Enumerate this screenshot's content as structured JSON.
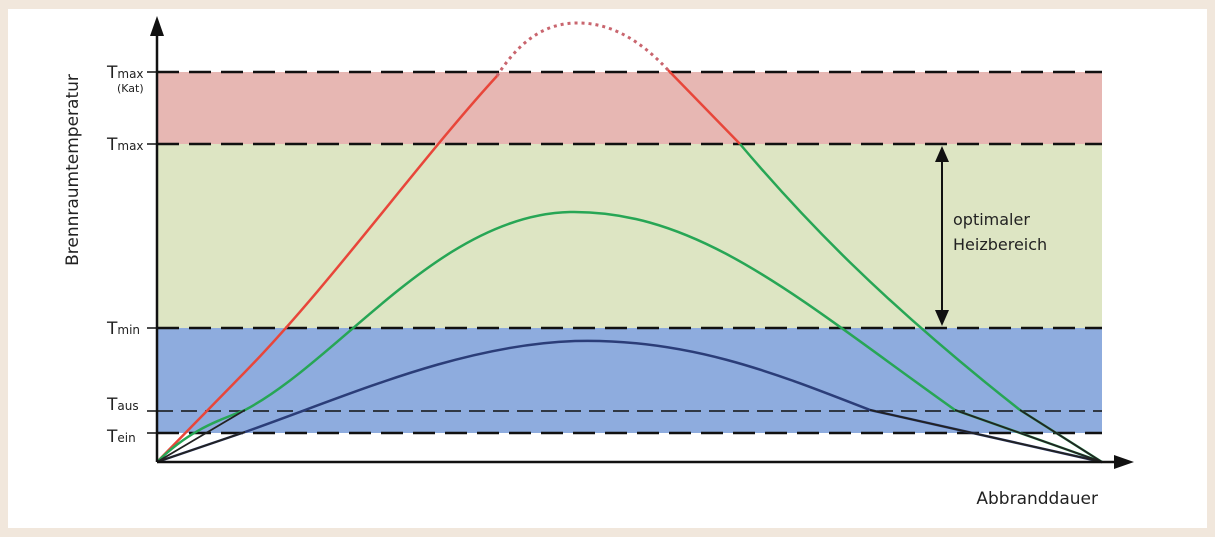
{
  "diagram": {
    "y_axis_label": "Brennraumtemperatur",
    "x_axis_label": "Abbranddauer",
    "levels": [
      {
        "key": "tmax_kat",
        "main": "T",
        "sub": "max",
        "note": "(Kat)"
      },
      {
        "key": "tmax",
        "main": "T",
        "sub": "max"
      },
      {
        "key": "tmin",
        "main": "T",
        "sub": "min"
      },
      {
        "key": "taus",
        "main": "T",
        "sub": "aus"
      },
      {
        "key": "tein",
        "main": "T",
        "sub": "ein"
      }
    ],
    "range_label_line1": "optimaler",
    "range_label_line2": "Heizbereich",
    "colors": {
      "red_zone": "#e7b7b3",
      "green_zone": "#dde5c3",
      "blue_zone": "#8eacde",
      "red_curve": "#e8463a",
      "green_curve": "#27a655",
      "blue_curve": "#2b3d78",
      "dotted_curve": "#c9656e",
      "axis": "#111111"
    }
  }
}
